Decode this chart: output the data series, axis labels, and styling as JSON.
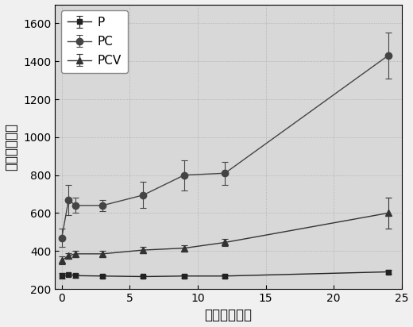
{
  "title": "",
  "xlabel": "时间（小时）",
  "ylabel": "粒径（纳米）",
  "xlim": [
    -0.5,
    25
  ],
  "ylim": [
    200,
    1700
  ],
  "xticks": [
    0,
    5,
    10,
    15,
    20,
    25
  ],
  "yticks": [
    200,
    400,
    600,
    800,
    1000,
    1200,
    1400,
    1600
  ],
  "background_color": "#d8d8d8",
  "series": [
    {
      "label": "P",
      "x": [
        0,
        0.5,
        1,
        3,
        6,
        9,
        12,
        24
      ],
      "y": [
        270,
        275,
        270,
        268,
        265,
        268,
        268,
        290
      ],
      "yerr": [
        15,
        10,
        10,
        8,
        8,
        8,
        8,
        12
      ],
      "color": "#222222",
      "marker": "s",
      "markersize": 5,
      "linewidth": 1.0
    },
    {
      "label": "PC",
      "x": [
        0,
        0.5,
        1,
        3,
        6,
        9,
        12,
        24
      ],
      "y": [
        470,
        670,
        640,
        640,
        695,
        800,
        810,
        1430
      ],
      "yerr": [
        50,
        80,
        40,
        30,
        70,
        80,
        60,
        120
      ],
      "color": "#444444",
      "marker": "o",
      "markersize": 6,
      "linewidth": 1.0
    },
    {
      "label": "PCV",
      "x": [
        0,
        0.5,
        1,
        3,
        6,
        9,
        12,
        24
      ],
      "y": [
        350,
        375,
        385,
        385,
        405,
        415,
        445,
        600
      ],
      "yerr": [
        20,
        15,
        15,
        15,
        15,
        15,
        20,
        80
      ],
      "color": "#333333",
      "marker": "^",
      "markersize": 6,
      "linewidth": 1.0
    }
  ],
  "legend_fontsize": 11,
  "axis_fontsize": 12,
  "tick_fontsize": 10
}
